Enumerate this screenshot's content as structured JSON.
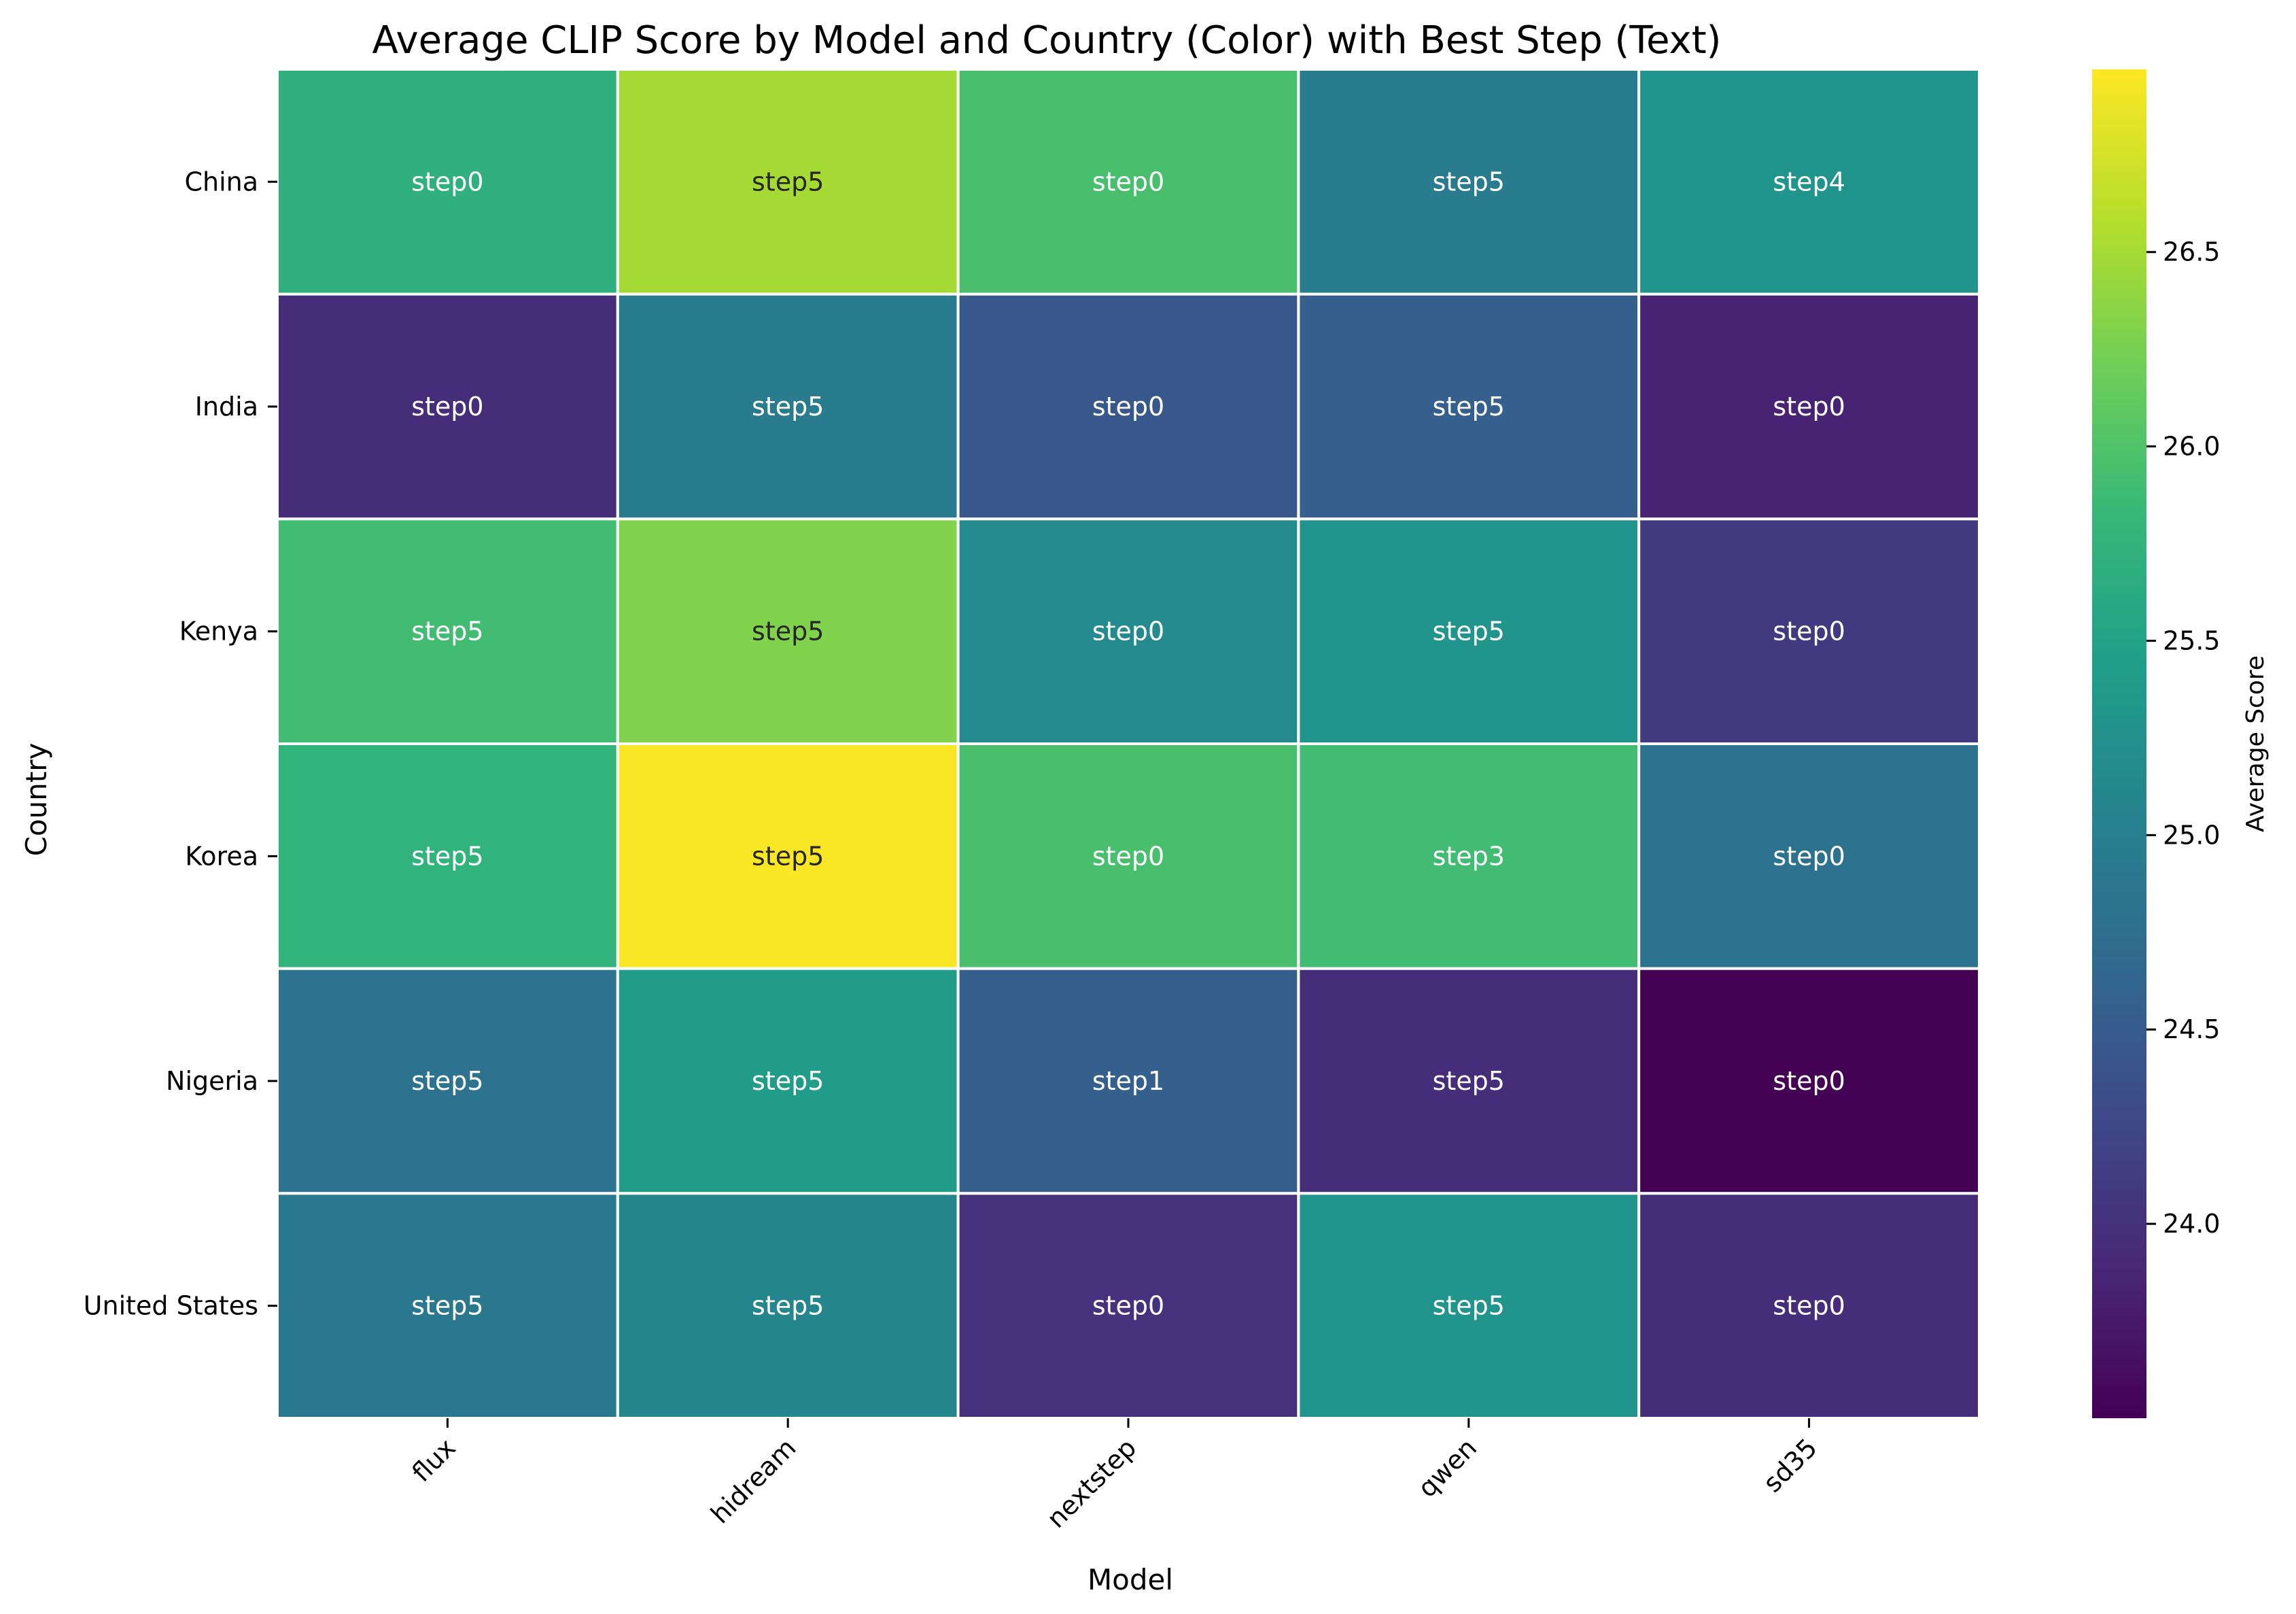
{
  "chart_data": {
    "type": "heatmap",
    "title": "Average CLIP Score by Model and Country (Color) with Best Step (Text)",
    "xlabel": "Model",
    "ylabel": "Country",
    "x_categories": [
      "flux",
      "hidream",
      "nextstep",
      "qwen",
      "sd35"
    ],
    "y_categories": [
      "China",
      "India",
      "Kenya",
      "Korea",
      "Nigeria",
      "United States"
    ],
    "values": [
      [
        25.7,
        26.5,
        25.95,
        24.95,
        25.3
      ],
      [
        23.95,
        24.95,
        24.45,
        24.55,
        23.85
      ],
      [
        25.9,
        26.3,
        25.15,
        25.3,
        24.1
      ],
      [
        25.75,
        26.95,
        25.95,
        25.9,
        24.8
      ],
      [
        24.8,
        25.4,
        24.55,
        23.95,
        23.5
      ],
      [
        24.9,
        25.1,
        24.0,
        25.3,
        23.95
      ]
    ],
    "annotations": [
      [
        "step0",
        "step5",
        "step0",
        "step5",
        "step4"
      ],
      [
        "step0",
        "step5",
        "step0",
        "step5",
        "step0"
      ],
      [
        "step5",
        "step5",
        "step0",
        "step5",
        "step0"
      ],
      [
        "step5",
        "step5",
        "step0",
        "step3",
        "step0"
      ],
      [
        "step5",
        "step5",
        "step1",
        "step5",
        "step0"
      ],
      [
        "step5",
        "step5",
        "step0",
        "step5",
        "step0"
      ]
    ],
    "colormap": "viridis",
    "colorbar": {
      "label": "Average Score",
      "vmin": 23.5,
      "vmax": 26.97,
      "ticks": [
        "24.0",
        "24.5",
        "25.0",
        "25.5",
        "26.0",
        "26.5"
      ]
    },
    "grid": false,
    "legend": "colorbar-right"
  }
}
